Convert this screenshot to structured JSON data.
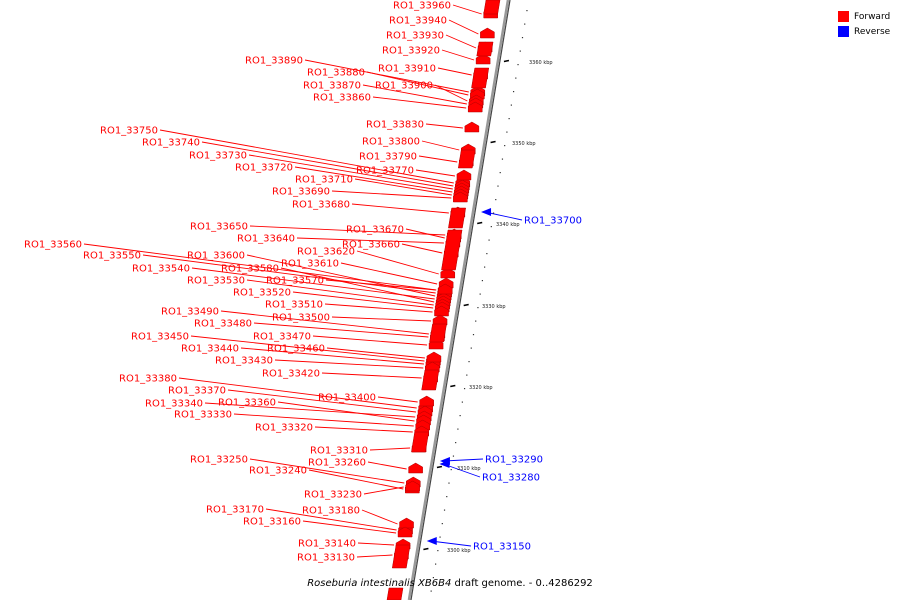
{
  "legend": {
    "forward_label": "Forward",
    "reverse_label": "Reverse",
    "forward_color": "#ff0000",
    "reverse_color": "#0000ff"
  },
  "caption": {
    "organism": "Roseburia intestinalis XB6B4",
    "suffix": "draft genome. - 0..4286292"
  },
  "colors": {
    "forward": "#ff0000",
    "forward_dark": "#b00000",
    "reverse": "#0000ff",
    "axis": "#999999",
    "tick": "#000000"
  },
  "genome_axis": {
    "ticks": [
      {
        "label": "3300 kbp",
        "kbp": 3300
      },
      {
        "label": "3310 kbp",
        "kbp": 3310
      },
      {
        "label": "3320 kbp",
        "kbp": 3320
      },
      {
        "label": "3330 kbp",
        "kbp": 3330
      },
      {
        "label": "3340 kbp",
        "kbp": 3340
      },
      {
        "label": "3350 kbp",
        "kbp": 3350
      },
      {
        "label": "3360 kbp",
        "kbp": 3360
      }
    ]
  },
  "genes_forward": [
    "RO1_33960",
    "RO1_33940",
    "RO1_33930",
    "RO1_33920",
    "RO1_33910",
    "RO1_33890",
    "RO1_33880",
    "RO1_33900",
    "RO1_33870",
    "RO1_33860",
    "RO1_33830",
    "RO1_33750",
    "RO1_33740",
    "RO1_33800",
    "RO1_33790",
    "RO1_33730",
    "RO1_33720",
    "RO1_33770",
    "RO1_33710",
    "RO1_33690",
    "RO1_33680",
    "RO1_33650",
    "RO1_33670",
    "RO1_33640",
    "RO1_33660",
    "RO1_33560",
    "RO1_33620",
    "RO1_33550",
    "RO1_33600",
    "RO1_33610",
    "RO1_33540",
    "RO1_33580",
    "RO1_33530",
    "RO1_33570",
    "RO1_33520",
    "RO1_33510",
    "RO1_33490",
    "RO1_33500",
    "RO1_33480",
    "RO1_33450",
    "RO1_33470",
    "RO1_33440",
    "RO1_33460",
    "RO1_33430",
    "RO1_33420",
    "RO1_33380",
    "RO1_33370",
    "RO1_33400",
    "RO1_33340",
    "RO1_33360",
    "RO1_33330",
    "RO1_33320",
    "RO1_33310",
    "RO1_33250",
    "RO1_33260",
    "RO1_33240",
    "RO1_33230",
    "RO1_33170",
    "RO1_33180",
    "RO1_33160",
    "RO1_33140",
    "RO1_33130"
  ],
  "genes_reverse": [
    "RO1_33700",
    "RO1_33290",
    "RO1_33280",
    "RO1_33150"
  ]
}
